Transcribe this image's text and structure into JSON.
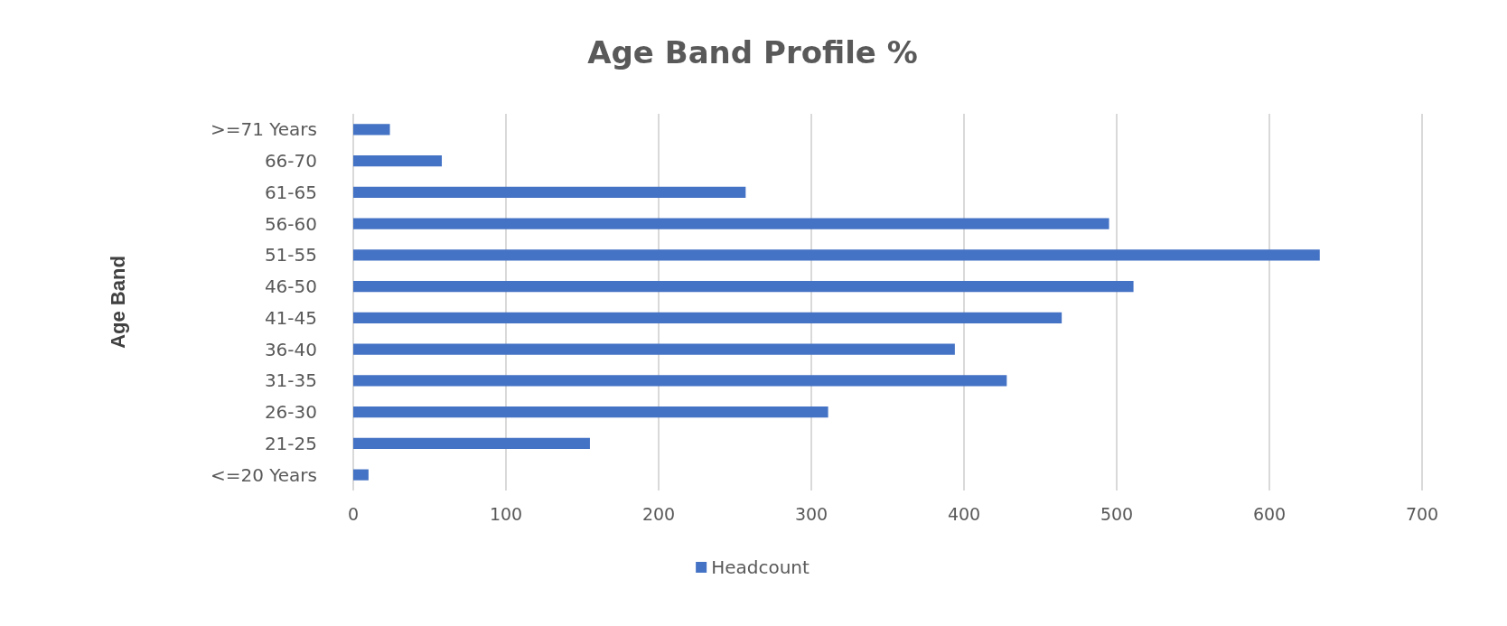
{
  "chart_data": {
    "type": "bar",
    "orientation": "horizontal",
    "title": "Age Band Profile %",
    "ylabel": "Age Band",
    "categories": [
      ">=71 Years",
      "66-70",
      "61-65",
      "56-60",
      "51-55",
      "46-50",
      "41-45",
      "36-40",
      "31-35",
      "26-30",
      "21-25",
      "<=20 Years"
    ],
    "series": [
      {
        "name": "Headcount",
        "color": "#4472c4",
        "values": [
          24,
          58,
          257,
          495,
          633,
          511,
          464,
          394,
          428,
          311,
          155,
          10
        ]
      }
    ],
    "xlim": [
      0,
      700
    ],
    "xticks": [
      0,
      100,
      200,
      300,
      400,
      500,
      600,
      700
    ],
    "grid": "x",
    "legend": "bottom"
  }
}
